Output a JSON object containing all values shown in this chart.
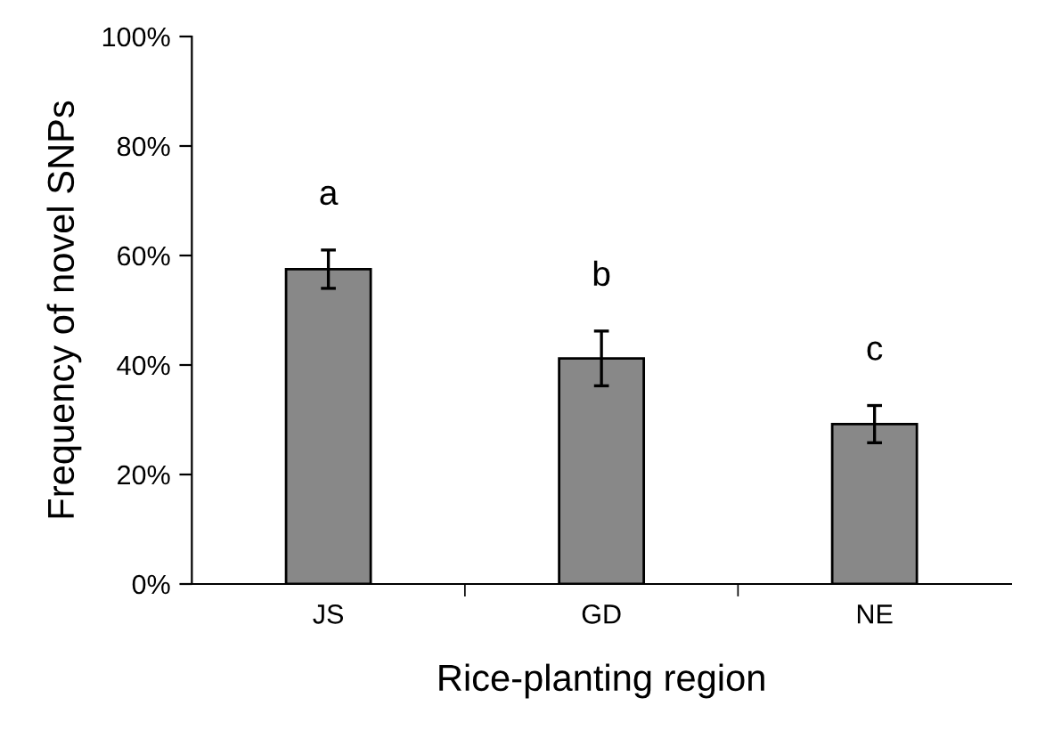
{
  "chart_data": {
    "type": "bar",
    "xlabel": "Rice-planting region",
    "ylabel": "Frequency of novel SNPs",
    "categories": [
      "JS",
      "GD",
      "NE"
    ],
    "values": [
      57.5,
      41.2,
      29.2
    ],
    "errors": [
      3.5,
      5.0,
      3.4
    ],
    "color": "#888888",
    "ylim": [
      0,
      100
    ],
    "yticks": [
      {
        "value": 0,
        "label": "0%"
      },
      {
        "value": 20,
        "label": "20%"
      },
      {
        "value": 40,
        "label": "40%"
      },
      {
        "value": 60,
        "label": "60%"
      },
      {
        "value": 80,
        "label": "80%"
      },
      {
        "value": 100,
        "label": "100%"
      }
    ],
    "annotations": [
      "a",
      "b",
      "c"
    ]
  }
}
